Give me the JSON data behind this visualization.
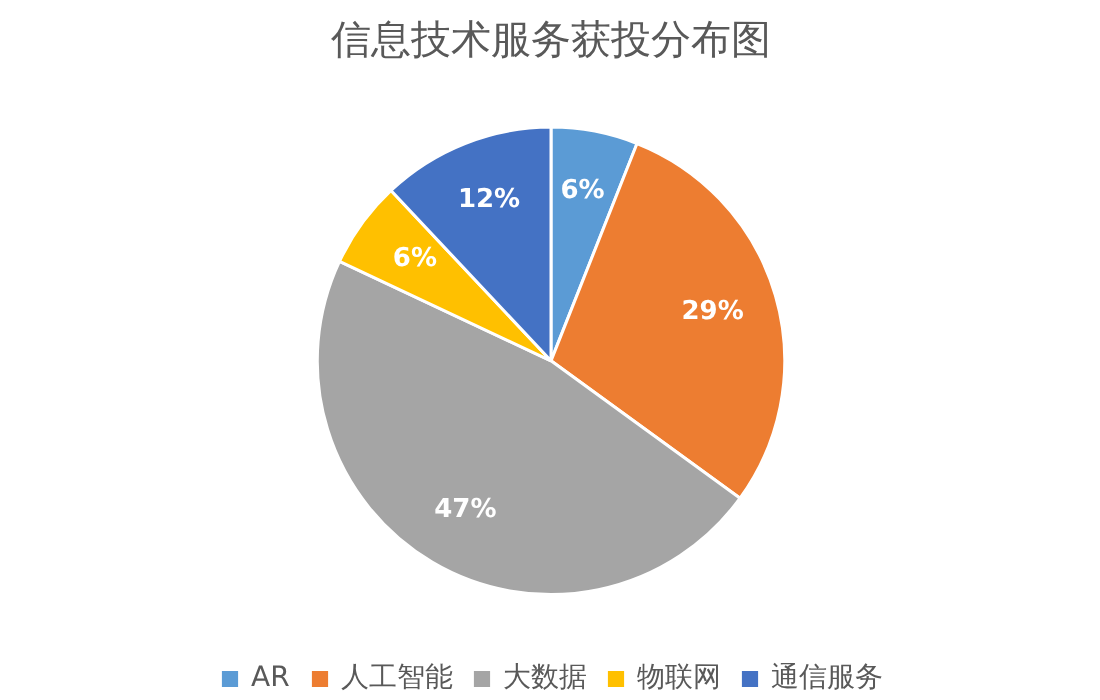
{
  "chart_data": {
    "type": "pie",
    "title": "信息技术服务获投分布图",
    "categories": [
      "AR",
      "人工智能",
      "大数据",
      "物联网",
      "通信服务"
    ],
    "values": [
      6,
      29,
      47,
      6,
      12
    ],
    "colors": [
      "#5b9bd5",
      "#ed7d31",
      "#a5a5a5",
      "#ffc000",
      "#4472c4"
    ],
    "value_labels": [
      "6%",
      "29%",
      "47%",
      "6%",
      "12%"
    ],
    "legend": "bottom"
  }
}
